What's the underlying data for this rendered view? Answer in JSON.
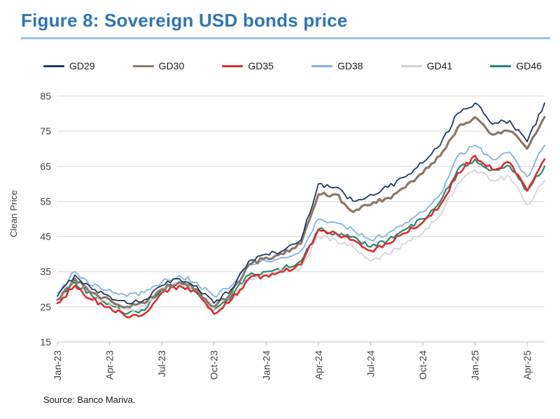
{
  "title": "Figure 8: Sovereign USD bonds price",
  "source": "Source: Banco Mariva.",
  "colors": {
    "title": "#2E75B6",
    "title_underline": "#9DC3E6",
    "grid": "#D9D9D9",
    "axis": "#BFBFBF",
    "tick_text": "#404040"
  },
  "chart_data": {
    "type": "line",
    "title": "Sovereign USD bonds price",
    "xlabel": "",
    "ylabel": "Clean Price",
    "ylim": [
      15,
      88
    ],
    "yticks": [
      15,
      25,
      35,
      45,
      55,
      65,
      75,
      85
    ],
    "grid": true,
    "legend_position": "top",
    "x": [
      "Jan-23",
      "Feb-23",
      "Mar-23",
      "Apr-23",
      "May-23",
      "Jun-23",
      "Jul-23",
      "Aug-23",
      "Sep-23",
      "Oct-23",
      "Nov-23",
      "Dec-23",
      "Jan-24",
      "Feb-24",
      "Mar-24",
      "Apr-24",
      "May-24",
      "Jun-24",
      "Jul-24",
      "Aug-24",
      "Sep-24",
      "Oct-24",
      "Nov-24",
      "Dec-24",
      "Jan-25",
      "Feb-25",
      "Mar-25",
      "Apr-25",
      "May-25"
    ],
    "xtick_labels": [
      "Jan-23",
      "Apr-23",
      "Jul-23",
      "Oct-23",
      "Jan-24",
      "Apr-24",
      "Jul-24",
      "Oct-24",
      "Jan-25",
      "Apr-25"
    ],
    "series": [
      {
        "name": "GD29",
        "color": "#1F3864",
        "width": 1.8,
        "values": [
          28,
          34,
          30,
          28,
          26,
          27,
          31,
          33,
          31,
          26,
          30,
          38,
          40,
          41,
          44,
          60,
          59,
          55,
          57,
          59,
          62,
          66,
          71,
          80,
          83,
          77,
          78,
          72,
          83
        ]
      },
      {
        "name": "GD30",
        "color": "#8A7967",
        "width": 3.2,
        "values": [
          27,
          33,
          29,
          27,
          25,
          26,
          30,
          32,
          30,
          25,
          29,
          37,
          39,
          40,
          43,
          57,
          57,
          52,
          54,
          56,
          59,
          63,
          68,
          76,
          79,
          74,
          75,
          70,
          79
        ]
      },
      {
        "name": "GD35",
        "color": "#E02B2B",
        "width": 2.6,
        "values": [
          26,
          31,
          27,
          25,
          22,
          23,
          29,
          31,
          29,
          23,
          27,
          33,
          34,
          35,
          37,
          47,
          46,
          44,
          41,
          43,
          46,
          49,
          54,
          63,
          68,
          64,
          66,
          58,
          67
        ]
      },
      {
        "name": "GD38",
        "color": "#7FB2E5",
        "width": 1.8,
        "values": [
          29,
          35,
          31,
          30,
          28,
          29,
          32,
          34,
          32,
          28,
          31,
          37,
          38,
          39,
          41,
          50,
          49,
          47,
          44,
          46,
          49,
          52,
          57,
          68,
          71,
          67,
          69,
          62,
          71
        ]
      },
      {
        "name": "GD41",
        "color": "#D2D2D2",
        "width": 1.7,
        "values": [
          28,
          33,
          29,
          26,
          24,
          25,
          30,
          32,
          29,
          24,
          27,
          33,
          34,
          35,
          36,
          45,
          44,
          42,
          38,
          40,
          43,
          46,
          51,
          60,
          64,
          61,
          62,
          54,
          61
        ]
      },
      {
        "name": "GD46",
        "color": "#1F8A73",
        "width": 2.2,
        "values": [
          27,
          32,
          28,
          26,
          23,
          24,
          30,
          32,
          30,
          24,
          28,
          34,
          35,
          36,
          38,
          47,
          46,
          45,
          42,
          44,
          47,
          50,
          55,
          64,
          67,
          64,
          65,
          58,
          65
        ]
      }
    ]
  }
}
